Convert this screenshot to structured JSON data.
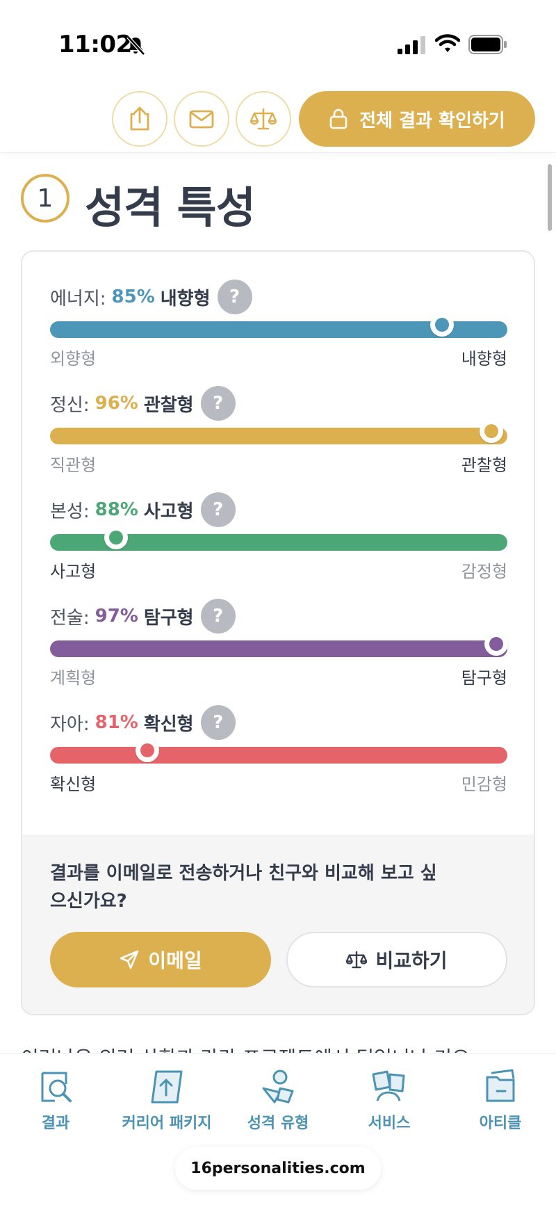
{
  "status_bar": {
    "time": "11:02"
  },
  "header": {
    "cta_label": "전체 결과 확인하기"
  },
  "section": {
    "number": "1",
    "title": "성격 특성"
  },
  "traits": [
    {
      "name": "에너지:",
      "percent": "85%",
      "percent_value": 85,
      "type": "내향형",
      "left_label": "외향형",
      "right_label": "내향형",
      "color": "#4c97b7",
      "knob_position": 0.857
    },
    {
      "name": "정신:",
      "percent": "96%",
      "percent_value": 96,
      "type": "관찰형",
      "left_label": "직관형",
      "right_label": "관찰형",
      "color": "#dcaf4f",
      "knob_position": 0.965
    },
    {
      "name": "본성:",
      "percent": "88%",
      "percent_value": 88,
      "type": "사고형",
      "left_label": "사고형",
      "right_label": "감정형",
      "color": "#4ca776",
      "knob_position": 0.144
    },
    {
      "name": "전술:",
      "percent": "97%",
      "percent_value": 97,
      "type": "탐구형",
      "left_label": "계획형",
      "right_label": "탐구형",
      "color": "#835c9c",
      "knob_position": 0.975
    },
    {
      "name": "자아:",
      "percent": "81%",
      "percent_value": 81,
      "type": "확신형",
      "left_label": "확신형",
      "right_label": "민감형",
      "color": "#e4646a",
      "knob_position": 0.213
    }
  ],
  "help_mark": "?",
  "card_footer": {
    "question": "결과를 이메일로 전송하거나 친구와 비교해 보고 싶으신가요?",
    "email_label": "이메일",
    "compare_label": "비교하기"
  },
  "peek_text": "이러나은 외러 산합과 라라 프로젝트에서 팀업니나 기오",
  "bottom_nav": {
    "items": [
      {
        "label": "결과",
        "icon": "magnifier-document-icon"
      },
      {
        "label": "커리어 패키지",
        "icon": "career-upload-icon"
      },
      {
        "label": "성격 유형",
        "icon": "shapes-icon"
      },
      {
        "label": "서비스",
        "icon": "people-icon"
      },
      {
        "label": "아티클",
        "icon": "folder-icon"
      }
    ],
    "url": "16personalities.com"
  },
  "colors": {
    "accent": "#dcaf4f",
    "nav": "#4a93b2",
    "text": "#343c4b"
  }
}
